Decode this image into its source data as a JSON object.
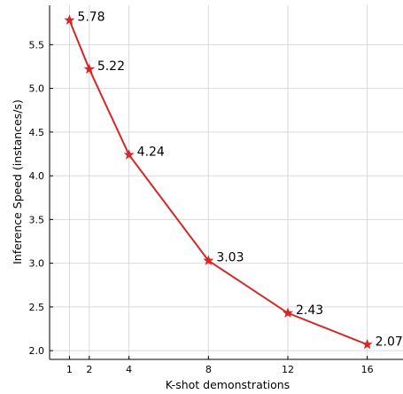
{
  "chart_data": {
    "type": "line",
    "x": [
      1,
      2,
      4,
      8,
      12,
      16
    ],
    "series": [
      {
        "values": [
          5.78,
          5.22,
          4.24,
          3.03,
          2.43,
          2.07
        ]
      }
    ],
    "data_labels": [
      "5.78",
      "5.22",
      "4.24",
      "3.03",
      "2.43",
      "2.07"
    ],
    "xticks": [
      1,
      2,
      4,
      8,
      12,
      16
    ],
    "yticks": [
      2.0,
      2.5,
      3.0,
      3.5,
      4.0,
      4.5,
      5.0,
      5.5
    ],
    "ytick_labels": [
      "2.0",
      "2.5",
      "3.0",
      "3.5",
      "4.0",
      "4.5",
      "5.0",
      "5.5"
    ],
    "xlabel": "K-shot demonstrations",
    "ylabel": "Inference Speed (instances/s)",
    "xlim": [
      0,
      17.8
    ],
    "ylim": [
      1.9,
      5.95
    ],
    "grid": true,
    "marker": "star",
    "line_color": "#d62728"
  }
}
